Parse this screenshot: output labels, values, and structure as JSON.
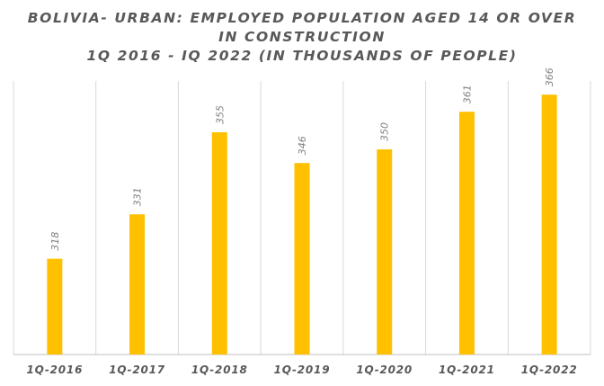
{
  "chart_data": {
    "type": "bar",
    "title_lines": [
      "BOLIVIA- URBAN: EMPLOYED POPULATION AGED 14 OR OVER",
      "IN CONSTRUCTION",
      "1Q 2016 - IQ 2022 (IN THOUSANDS OF PEOPLE)"
    ],
    "categories": [
      "1Q-2016",
      "1Q-2017",
      "1Q-2018",
      "1Q-2019",
      "1Q-2020",
      "1Q-2021",
      "1Q-2022"
    ],
    "values": [
      318,
      331,
      355,
      346,
      350,
      361,
      366
    ],
    "ylim": [
      290,
      370
    ],
    "xlabel": "",
    "ylabel": "",
    "bar_color": "#FFC000",
    "grid": "vertical separators"
  }
}
